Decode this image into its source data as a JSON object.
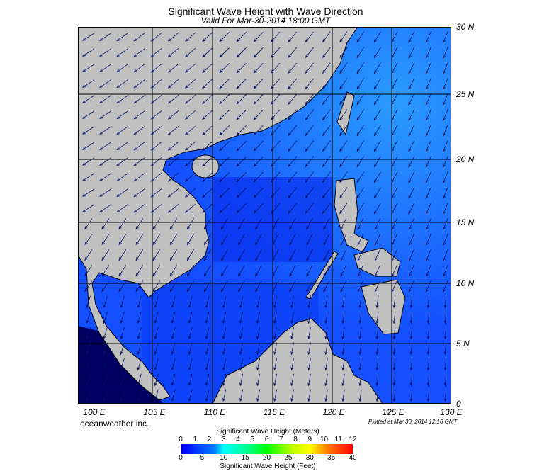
{
  "title": "Significant Wave Height with Wave Direction",
  "subtitle": "Valid For Mar-30-2014 18:00 GMT",
  "lon_labels": [
    "100 E",
    "105 E",
    "110 E",
    "115 E",
    "120 E",
    "125 E",
    "130 E"
  ],
  "lat_labels": [
    "30 N",
    "25 N",
    "20 N",
    "15 N",
    "10 N",
    "5 N",
    "0"
  ],
  "credit": "oceanweather inc.",
  "plotted": "Plotted at Mar 30, 2014 12:16 GMT",
  "colorbar": {
    "meters_title": "Significant Wave Height (Meters)",
    "meters_ticks": [
      "0",
      "1",
      "2",
      "3",
      "4",
      "5",
      "6",
      "7",
      "8",
      "9",
      "10",
      "11",
      "12"
    ],
    "feet_ticks": [
      "0",
      "5",
      "10",
      "15",
      "20",
      "25",
      "30",
      "35",
      "40"
    ],
    "feet_title": "Significant Wave Height (Feet)"
  },
  "colors": {
    "land": "#c0c0c0",
    "ocean_low": "#0000ff",
    "ocean_mid": "#0060ff",
    "ocean_high": "#40c0ff"
  }
}
